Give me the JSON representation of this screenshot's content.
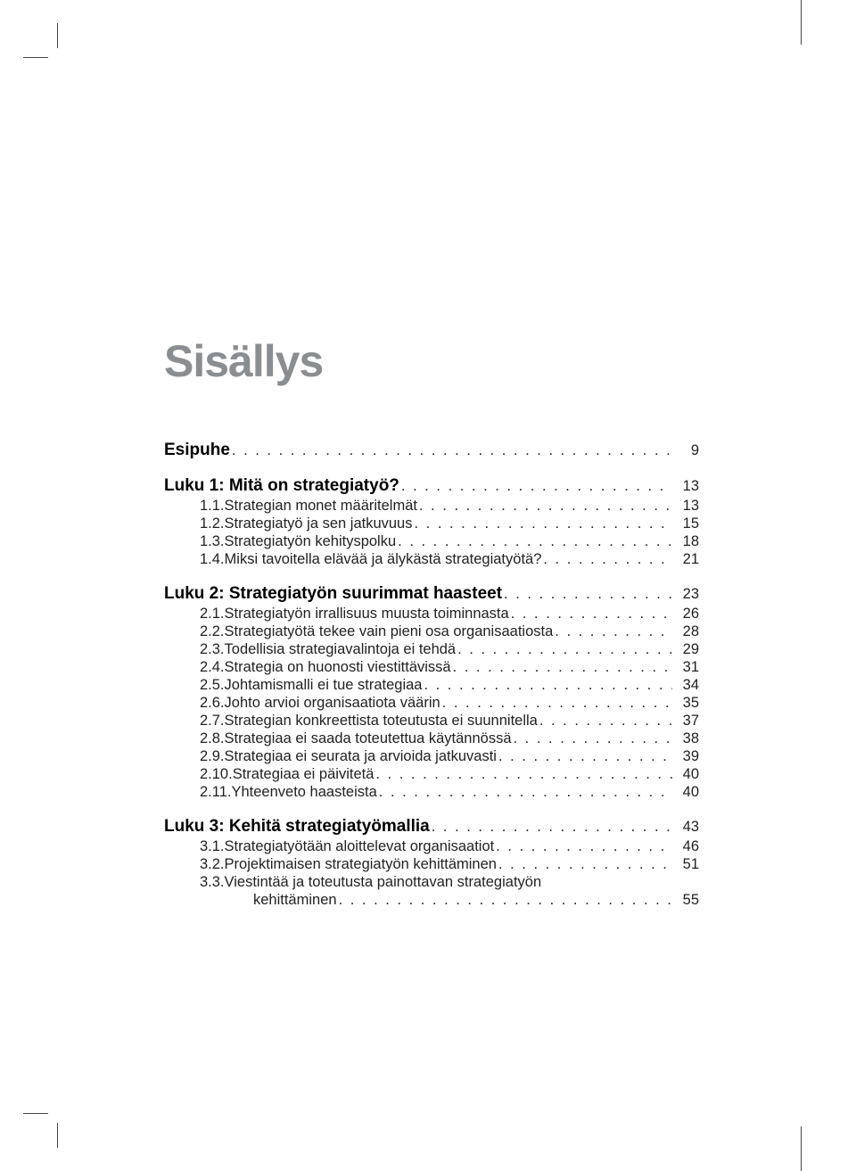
{
  "title": "Sisällys",
  "esipuhe": {
    "label": "Esipuhe",
    "page": "9"
  },
  "chapters": [
    {
      "heading": "Luku 1: Mitä on strategiatyö?",
      "page": "13",
      "sections": [
        {
          "num": "1.1.",
          "text": "Strategian monet määritelmät",
          "page": "13"
        },
        {
          "num": "1.2.",
          "text": "Strategiatyö ja sen jatkuvuus",
          "page": "15"
        },
        {
          "num": "1.3.",
          "text": "Strategiatyön kehityspolku",
          "page": "18"
        },
        {
          "num": "1.4.",
          "text": "Miksi tavoitella elävää ja älykästä strategiatyötä?",
          "page": "21"
        }
      ]
    },
    {
      "heading": "Luku 2: Strategiatyön suurimmat haasteet",
      "page": "23",
      "sections": [
        {
          "num": "2.1.",
          "text": "Strategiatyön irrallisuus muusta toiminnasta",
          "page": "26"
        },
        {
          "num": "2.2.",
          "text": "Strategiatyötä tekee vain pieni osa organisaatiosta",
          "page": "28"
        },
        {
          "num": "2.3.",
          "text": "Todellisia strategiavalintoja ei tehdä",
          "page": "29"
        },
        {
          "num": "2.4.",
          "text": "Strategia on huonosti viestittävissä",
          "page": "31"
        },
        {
          "num": "2.5.",
          "text": "Johtamismalli ei tue strategiaa",
          "page": "34"
        },
        {
          "num": "2.6.",
          "text": "Johto arvioi organisaatiota väärin",
          "page": "35"
        },
        {
          "num": "2.7.",
          "text": "Strategian konkreettista toteutusta ei suunnitella",
          "page": "37"
        },
        {
          "num": "2.8.",
          "text": "Strategiaa ei saada toteutettua käytännössä",
          "page": "38"
        },
        {
          "num": "2.9.",
          "text": "Strategiaa ei seurata ja arvioida jatkuvasti",
          "page": "39"
        },
        {
          "num": "2.10.",
          "text": "Strategiaa ei päivitetä",
          "page": "40"
        },
        {
          "num": "2.11.",
          "text": "Yhteenveto haasteista",
          "page": "40"
        }
      ]
    },
    {
      "heading": "Luku 3: Kehitä strategiatyömallia",
      "page": "43",
      "sections": [
        {
          "num": "3.1.",
          "text": "Strategiatyötään aloittelevat organisaatiot",
          "page": "46"
        },
        {
          "num": "3.2.",
          "text": "Projektimaisen strategiatyön kehittäminen",
          "page": "51"
        }
      ],
      "wrapped": {
        "num": "3.3.",
        "line1": "Viestintää ja toteutusta painottavan strategiatyön",
        "line2": "kehittäminen",
        "page": "55"
      }
    }
  ],
  "colors": {
    "title": "#8a8e91",
    "text": "#000000",
    "background": "#ffffff"
  },
  "typography": {
    "title_fontsize": 50,
    "heading_fontsize": 19,
    "body_fontsize": 16.5
  }
}
